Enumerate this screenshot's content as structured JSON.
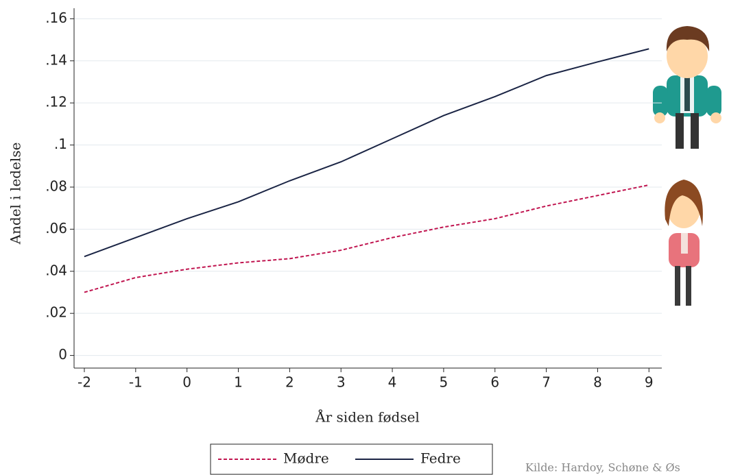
{
  "chart_data": {
    "type": "line",
    "x_label": "År siden fødsel",
    "y_label": "Andel i ledelse",
    "source": "Kilde: Hardoy, Schøne & Øs",
    "x": [
      -2,
      -1,
      0,
      1,
      2,
      3,
      4,
      5,
      6,
      7,
      8,
      9
    ],
    "series": [
      {
        "name": "Mødre",
        "color": "#c0144f",
        "dash": true,
        "values": [
          0.03,
          0.037,
          0.041,
          0.044,
          0.046,
          0.05,
          0.056,
          0.061,
          0.065,
          0.071,
          0.076,
          0.081
        ]
      },
      {
        "name": "Fedre",
        "color": "#1a2444",
        "dash": false,
        "values": [
          0.047,
          0.056,
          0.065,
          0.073,
          0.083,
          0.092,
          0.103,
          0.114,
          0.123,
          0.133,
          0.1395,
          0.1457
        ]
      }
    ],
    "xlim": [
      -2.2,
      9.25
    ],
    "ylim": [
      -0.006,
      0.165
    ],
    "xticks": [
      -2,
      -1,
      0,
      1,
      2,
      3,
      4,
      5,
      6,
      7,
      8,
      9
    ],
    "yticks": [
      0,
      {
        "value": 0.02,
        "label": ".02"
      },
      {
        "value": 0.04,
        "label": ".04"
      },
      {
        "value": 0.06,
        "label": ".06"
      },
      {
        "value": 0.08,
        "label": ".08"
      },
      {
        "value": 0.1,
        "label": ".1"
      },
      {
        "value": 0.12,
        "label": ".12"
      },
      {
        "value": 0.14,
        "label": ".14"
      },
      {
        "value": 0.16,
        "label": ".16"
      }
    ],
    "grid": true
  }
}
